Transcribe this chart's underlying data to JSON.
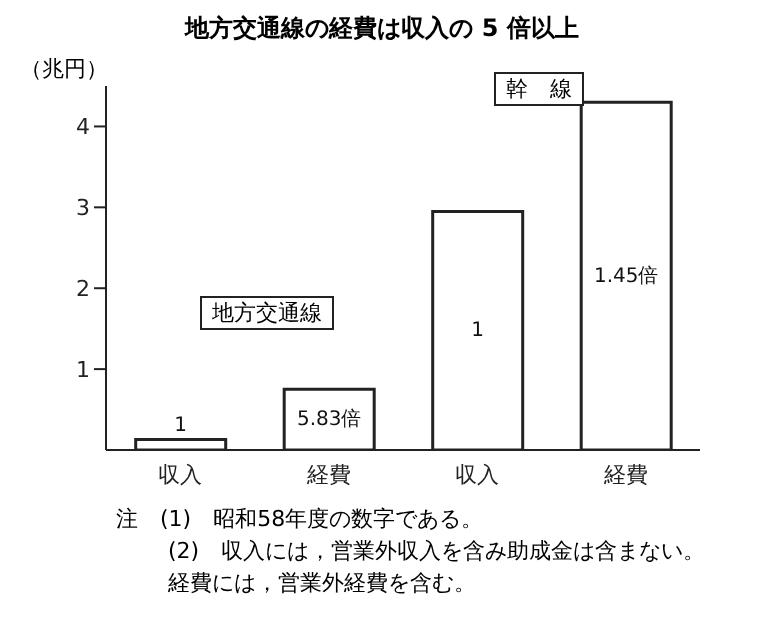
{
  "chart_data": {
    "type": "bar",
    "title": "地方交通線の経費は収入の 5 倍以上",
    "ylabel": "（兆円）",
    "categories": [
      "収入",
      "経費",
      "収入",
      "経費"
    ],
    "values": [
      0.13,
      0.75,
      2.95,
      4.3
    ],
    "color": "#ffffff",
    "ylim": [
      0,
      4.5
    ],
    "yticks": [
      1,
      2,
      3,
      4
    ],
    "grid": false,
    "legend": false,
    "annotations": [
      "1",
      "5.83倍",
      "1",
      "1.45倍",
      "地方交通線",
      "幹　線",
      "注　(1)　昭和58年度の数字である。",
      "(2)　収入には，営業外収入を含み助成金は含まない。",
      "経費には，営業外経費を含む。"
    ]
  }
}
